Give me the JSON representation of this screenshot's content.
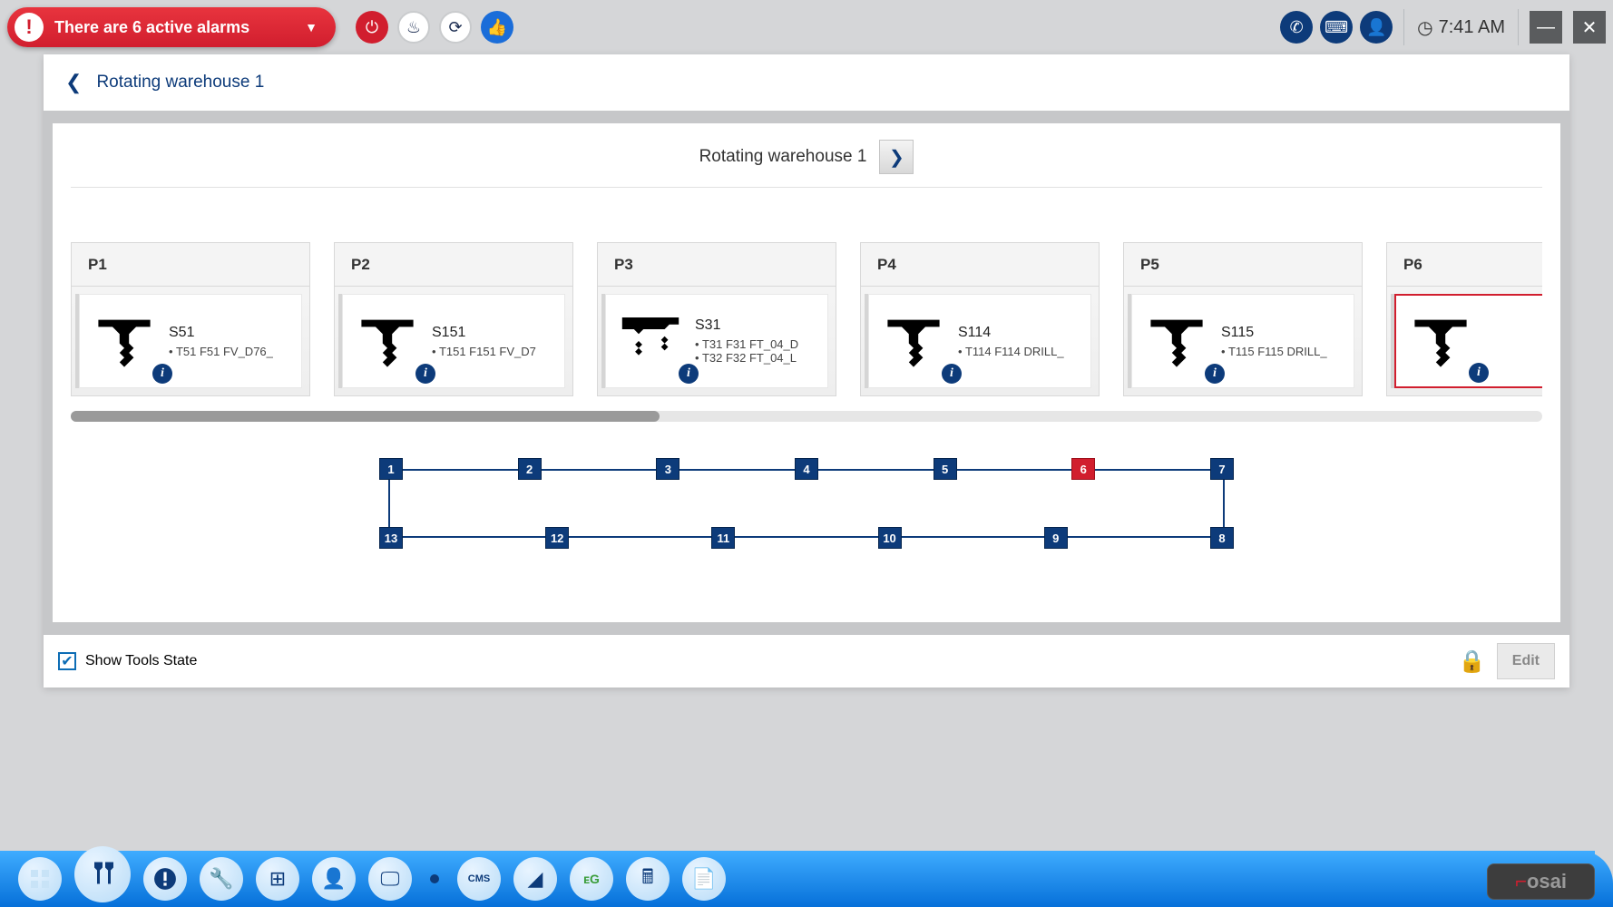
{
  "alarm": {
    "text": "There are 6 active alarms"
  },
  "time": "7:41 AM",
  "breadcrumb": {
    "title": "Rotating warehouse 1"
  },
  "section": {
    "title": "Rotating warehouse 1"
  },
  "tools": [
    {
      "pos": "P1",
      "name": "S51",
      "lines": [
        "T51 F51 FV_D76_"
      ],
      "multi": false
    },
    {
      "pos": "P2",
      "name": "S151",
      "lines": [
        "T151 F151 FV_D7"
      ],
      "multi": false
    },
    {
      "pos": "P3",
      "name": "S31",
      "lines": [
        "T31 F31 FT_04_D",
        "T32 F32 FT_04_L"
      ],
      "multi": true
    },
    {
      "pos": "P4",
      "name": "S114",
      "lines": [
        "T114 F114 DRILL_"
      ],
      "multi": false
    },
    {
      "pos": "P5",
      "name": "S115",
      "lines": [
        "T115 F115 DRILL_"
      ],
      "multi": false
    },
    {
      "pos": "P6",
      "name": "",
      "lines": [],
      "multi": false,
      "alert": true
    }
  ],
  "nodes": {
    "top": [
      "1",
      "2",
      "3",
      "4",
      "5",
      "6",
      "7"
    ],
    "bottom": [
      "13",
      "12",
      "11",
      "10",
      "9",
      "8"
    ],
    "red": "6"
  },
  "status": {
    "checkbox_label": "Show Tools State",
    "edit": "Edit"
  },
  "brand": "osai",
  "colors": {
    "navy": "#0d3b7a",
    "red": "#d11e2e"
  }
}
